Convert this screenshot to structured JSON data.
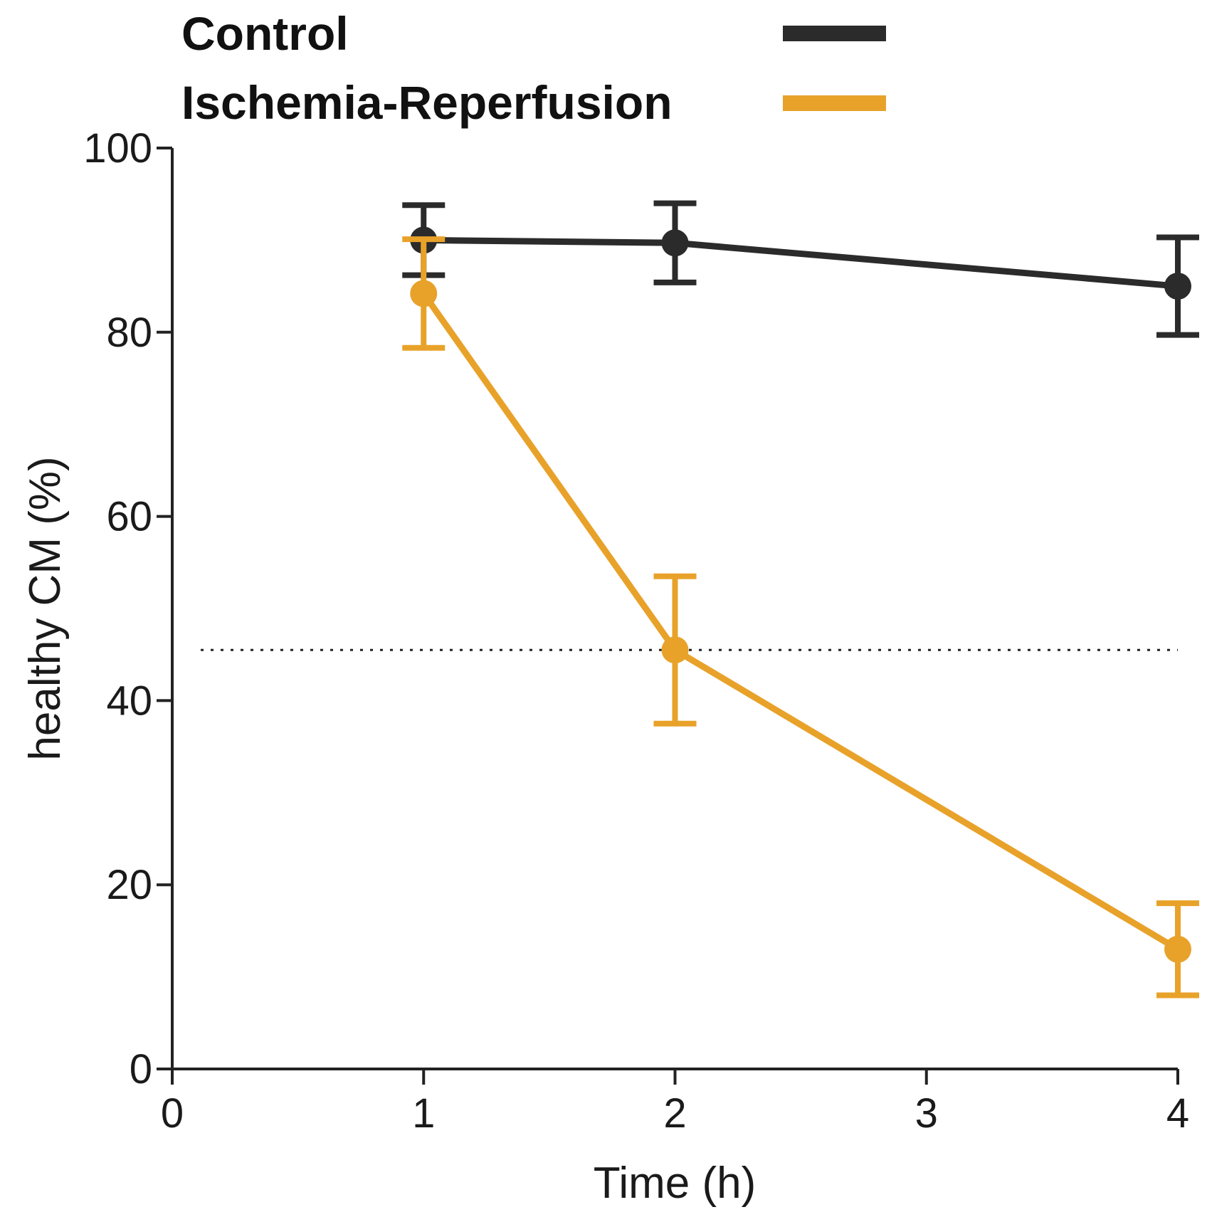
{
  "chart_data": {
    "type": "line",
    "title": "",
    "xlabel": "Time (h)",
    "ylabel": "healthy CM (%)",
    "xlim": [
      0,
      4
    ],
    "ylim": [
      0,
      100
    ],
    "x_ticks": [
      0,
      1,
      2,
      3,
      4
    ],
    "y_ticks": [
      0,
      20,
      40,
      60,
      80,
      100
    ],
    "grid": false,
    "legend_position": "top",
    "reference_line": {
      "orientation": "horizontal",
      "y": 45.5,
      "style": "dotted"
    },
    "series": [
      {
        "name": "Control",
        "color": "#2b2b2b",
        "x": [
          1,
          2,
          4
        ],
        "y": [
          90,
          89.7,
          85
        ],
        "error": [
          3.8,
          4.3,
          5.3
        ]
      },
      {
        "name": "Ischemia-Reperfusion",
        "color": "#e8a22a",
        "x": [
          1,
          2,
          4
        ],
        "y": [
          84.2,
          45.5,
          13
        ],
        "error": [
          5.9,
          8,
          5
        ]
      }
    ]
  }
}
